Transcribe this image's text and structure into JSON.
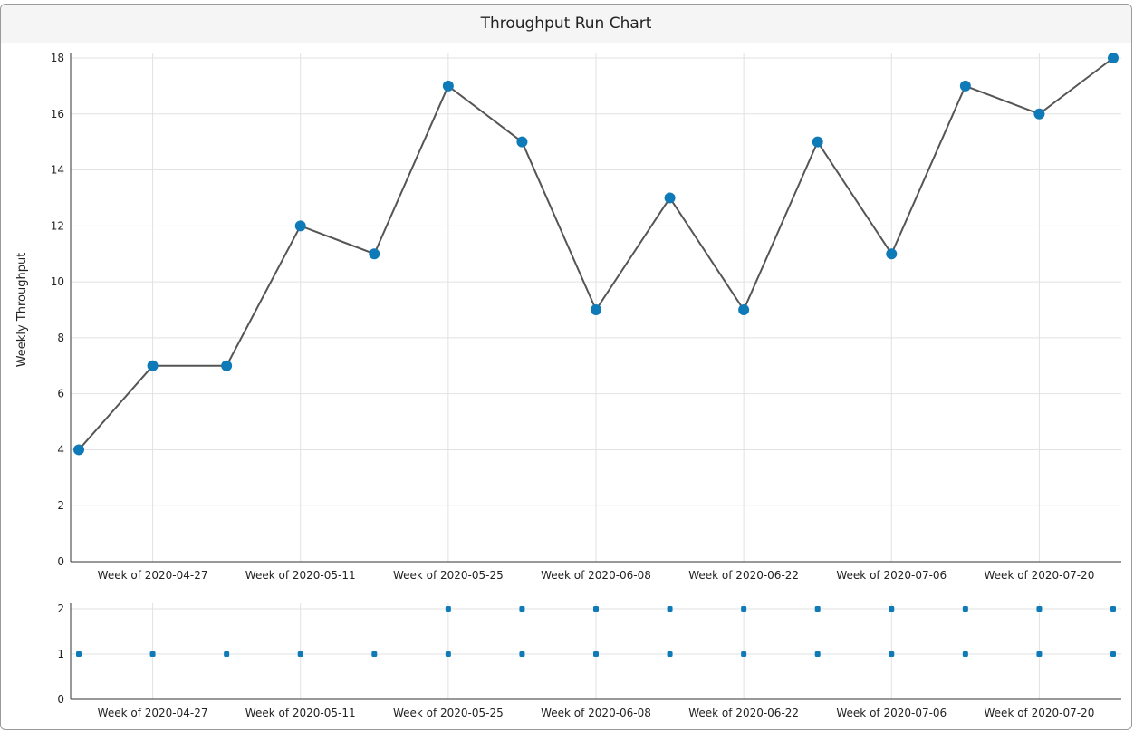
{
  "chart_data": [
    {
      "type": "line",
      "title": "Throughput Run Chart",
      "ylabel": "Weekly Throughput",
      "xlabel": "",
      "x": [
        "2020-04-20",
        "2020-04-27",
        "2020-05-04",
        "2020-05-11",
        "2020-05-18",
        "2020-05-25",
        "2020-06-01",
        "2020-06-08",
        "2020-06-15",
        "2020-06-22",
        "2020-06-29",
        "2020-07-06",
        "2020-07-13",
        "2020-07-20",
        "2020-07-27"
      ],
      "values": [
        4,
        7,
        7,
        12,
        11,
        17,
        15,
        9,
        13,
        9,
        15,
        11,
        17,
        16,
        18
      ],
      "xlim": [
        "2020-04-20",
        "2020-07-27"
      ],
      "ylim": [
        0,
        18
      ],
      "yticks": [
        0,
        2,
        4,
        6,
        8,
        10,
        12,
        14,
        16,
        18
      ],
      "xticks": [
        "Week of 2020-04-27",
        "Week of 2020-05-11",
        "Week of 2020-05-25",
        "Week of 2020-06-08",
        "Week of 2020-06-22",
        "Week of 2020-07-06",
        "Week of 2020-07-20"
      ],
      "xtick_dates": [
        "2020-04-27",
        "2020-05-11",
        "2020-05-25",
        "2020-06-08",
        "2020-06-22",
        "2020-07-06",
        "2020-07-20"
      ],
      "grid": true,
      "colors": {
        "line": "#555555",
        "marker": "#0f7ab8",
        "grid": "#e2e2e2",
        "axis": "#333333"
      }
    },
    {
      "type": "scatter",
      "title": "",
      "ylabel": "",
      "x": [
        "2020-04-20",
        "2020-04-27",
        "2020-05-04",
        "2020-05-11",
        "2020-05-18",
        "2020-05-25",
        "2020-06-01",
        "2020-06-08",
        "2020-06-15",
        "2020-06-22",
        "2020-06-29",
        "2020-07-06",
        "2020-07-13",
        "2020-07-20",
        "2020-07-27"
      ],
      "counts": [
        1,
        1,
        1,
        1,
        1,
        2,
        2,
        2,
        2,
        2,
        2,
        2,
        2,
        2,
        2
      ],
      "ylim": [
        0,
        2
      ],
      "yticks": [
        0,
        1,
        2
      ],
      "xticks": [
        "Week of 2020-04-27",
        "Week of 2020-05-11",
        "Week of 2020-05-25",
        "Week of 2020-06-08",
        "Week of 2020-06-22",
        "Week of 2020-07-06",
        "Week of 2020-07-20"
      ],
      "xtick_dates": [
        "2020-04-27",
        "2020-05-11",
        "2020-05-25",
        "2020-06-08",
        "2020-06-22",
        "2020-07-06",
        "2020-07-20"
      ],
      "grid": true,
      "colors": {
        "marker": "#0f7ab8",
        "grid": "#e2e2e2",
        "axis": "#333333"
      }
    }
  ]
}
